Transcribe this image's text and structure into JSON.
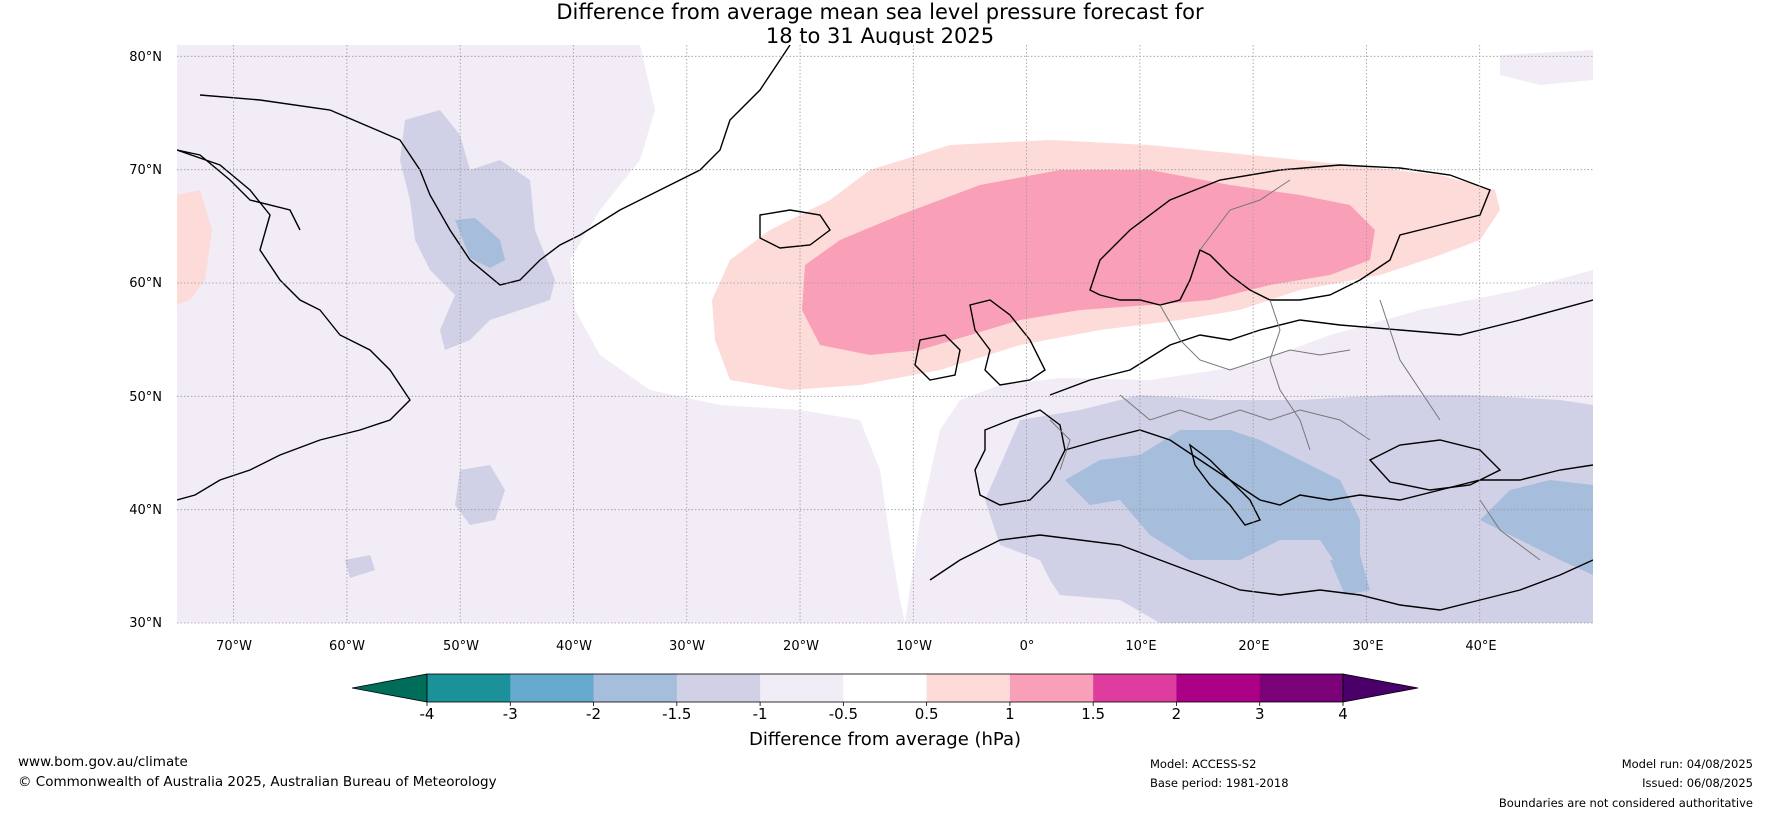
{
  "title": {
    "line1": "Difference from average mean sea level pressure forecast for",
    "line2": "18 to 31 August 2025"
  },
  "map": {
    "lat_labels": [
      "80°N",
      "70°N",
      "60°N",
      "50°N",
      "40°N",
      "30°N"
    ],
    "lon_labels": [
      "70°W",
      "60°W",
      "50°W",
      "40°W",
      "30°W",
      "20°W",
      "10°W",
      "0°",
      "10°E",
      "20°E",
      "30°E",
      "40°E"
    ],
    "extent": {
      "lon": [
        -75,
        50
      ],
      "lat": [
        30,
        81
      ]
    }
  },
  "colorbar": {
    "title": "Difference from average (hPa)",
    "tick_labels": [
      "-4",
      "-3",
      "-2",
      "-1.5",
      "-1",
      "-0.5",
      "0.5",
      "1",
      "1.5",
      "2",
      "3",
      "4"
    ],
    "colors": [
      "#006d5b",
      "#1b9199",
      "#67a9cf",
      "#a6bddb",
      "#d0d1e6",
      "#f1ecf5",
      "#ffffff",
      "#fddbd9",
      "#f99fb8",
      "#df3ca0",
      "#ac0086",
      "#7a0177",
      "#49006a"
    ]
  },
  "footer": {
    "website": "www.bom.gov.au/climate",
    "copyright": "© Commonwealth of Australia 2025, Australian Bureau of Meteorology",
    "model": "Model: ACCESS-S2",
    "base_period": "Base period: 1981-2018",
    "model_run": "Model run: 04/08/2025",
    "issued": "Issued: 06/08/2025",
    "disclaimer": "Boundaries are not considered authoritative"
  }
}
